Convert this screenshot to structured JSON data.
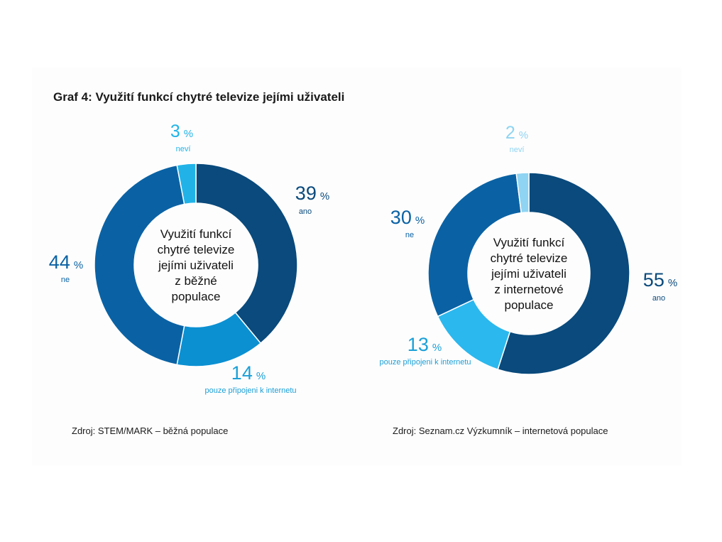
{
  "title": "Graf 4: Využití funkcí chytré televize jejími uživateli",
  "chart_data": [
    {
      "type": "pie",
      "center_label": [
        "Využití funkcí",
        "chytré televize",
        "jejími uživateli",
        "z běžné",
        "populace"
      ],
      "slices": [
        {
          "label": "ano",
          "value": 39,
          "color": "#0a4a7c",
          "label_color": "#0a4a7c"
        },
        {
          "label": "pouze připojeni k internetu",
          "value": 14,
          "color": "#0b90d2",
          "label_color": "#1ba0d8"
        },
        {
          "label": "ne",
          "value": 44,
          "color": "#0a62a4",
          "label_color": "#0a62a4"
        },
        {
          "label": "neví",
          "value": 3,
          "color": "#21b3e8",
          "label_color": "#21b3e8"
        }
      ],
      "source": "Zdroj: STEM/MARK – běžná populace"
    },
    {
      "type": "pie",
      "center_label": [
        "Využití funkcí",
        "chytré televize",
        "jejími uživateli",
        "z internetové",
        "populace"
      ],
      "slices": [
        {
          "label": "ano",
          "value": 55,
          "color": "#0a4a7c",
          "label_color": "#0a4a7c"
        },
        {
          "label": "pouze připojeni k internetu",
          "value": 13,
          "color": "#2bb8ee",
          "label_color": "#1ba0d8"
        },
        {
          "label": "ne",
          "value": 30,
          "color": "#0a62a4",
          "label_color": "#0a62a4"
        },
        {
          "label": "neví",
          "value": 2,
          "color": "#8fd4f2",
          "label_color": "#8fd4f2"
        }
      ],
      "source": "Zdroj: Seznam.cz Výzkumník – internetová populace"
    }
  ]
}
